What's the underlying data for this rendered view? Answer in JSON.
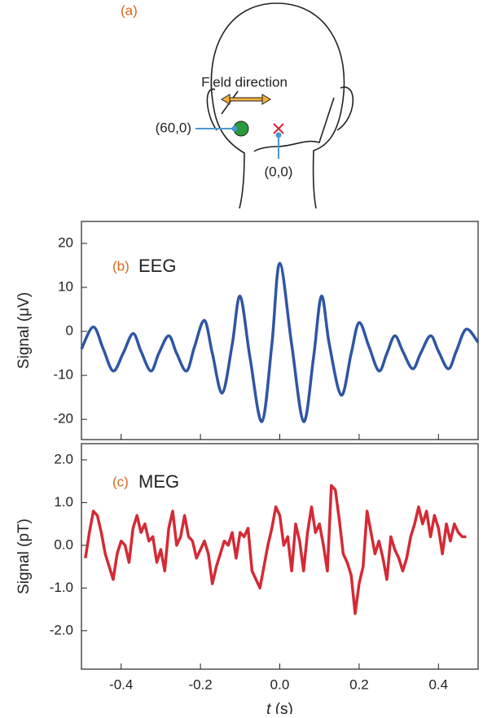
{
  "figure": {
    "panel": "(a)",
    "field_label": "Field direction",
    "point_a": "(60,0)",
    "point_b": "(0,0)"
  },
  "chart_data": [
    {
      "type": "line",
      "panel": "(b)",
      "title": "EEG",
      "ylabel": "Signal (μV)",
      "color": "#2f55a4",
      "xlim": [
        -0.5,
        0.5
      ],
      "ylim": [
        -24.6,
        25
      ],
      "yticks": [
        -20,
        -10,
        0,
        10,
        20
      ],
      "x": [
        -0.5,
        -0.47,
        -0.445,
        -0.42,
        -0.395,
        -0.37,
        -0.35,
        -0.325,
        -0.305,
        -0.28,
        -0.26,
        -0.235,
        -0.215,
        -0.19,
        -0.17,
        -0.145,
        -0.12,
        -0.1,
        -0.075,
        -0.045,
        -0.02,
        0,
        0.03,
        0.06,
        0.085,
        0.105,
        0.125,
        0.155,
        0.18,
        0.2,
        0.225,
        0.25,
        0.27,
        0.29,
        0.31,
        0.335,
        0.355,
        0.38,
        0.4,
        0.425,
        0.445,
        0.47,
        0.5
      ],
      "values": [
        -4,
        1,
        -4,
        -9,
        -5,
        -0.5,
        -4.5,
        -9,
        -5,
        -1,
        -5,
        -9,
        -3.5,
        2.5,
        -5,
        -14,
        -3,
        8,
        -6,
        -20.5,
        -3,
        15.5,
        -3,
        -20.5,
        -6,
        8,
        -3,
        -14.5,
        -5,
        2,
        -3.5,
        -9,
        -5,
        -1,
        -4.5,
        -8.5,
        -5,
        -1,
        -4.5,
        -8.5,
        -4.5,
        0.5,
        -2.5
      ]
    },
    {
      "type": "line",
      "panel": "(c)",
      "title": "MEG",
      "ylabel": "Signal (pT)",
      "color": "#d42a35",
      "xlim": [
        -0.5,
        0.5
      ],
      "ylim": [
        -2.9,
        2.38
      ],
      "yticks": [
        {
          "value": -2,
          "label": "-2.0"
        },
        {
          "value": -1,
          "label": "-1.0"
        },
        {
          "value": 0,
          "label": "0.0"
        },
        {
          "value": 1,
          "label": "1.0"
        },
        {
          "value": 2,
          "label": "2.0"
        }
      ],
      "xticks": [
        -0.4,
        -0.2,
        {
          "value": 0,
          "label": "0.0"
        },
        0.2,
        0.4
      ],
      "xlabel": {
        "symbol": "t",
        "unit": "(s)"
      },
      "x": [
        -0.49,
        -0.48,
        -0.47,
        -0.46,
        -0.45,
        -0.44,
        -0.43,
        -0.42,
        -0.41,
        -0.4,
        -0.39,
        -0.38,
        -0.37,
        -0.36,
        -0.35,
        -0.34,
        -0.33,
        -0.32,
        -0.31,
        -0.3,
        -0.29,
        -0.28,
        -0.27,
        -0.26,
        -0.25,
        -0.24,
        -0.23,
        -0.22,
        -0.21,
        -0.2,
        -0.19,
        -0.18,
        -0.17,
        -0.16,
        -0.15,
        -0.14,
        -0.13,
        -0.12,
        -0.11,
        -0.1,
        -0.09,
        -0.08,
        -0.07,
        -0.06,
        -0.05,
        -0.04,
        -0.03,
        -0.02,
        -0.01,
        0.0,
        0.01,
        0.02,
        0.03,
        0.04,
        0.05,
        0.06,
        0.07,
        0.08,
        0.09,
        0.1,
        0.11,
        0.12,
        0.13,
        0.14,
        0.15,
        0.16,
        0.17,
        0.18,
        0.19,
        0.2,
        0.21,
        0.22,
        0.23,
        0.24,
        0.25,
        0.26,
        0.27,
        0.28,
        0.29,
        0.3,
        0.31,
        0.32,
        0.33,
        0.34,
        0.35,
        0.36,
        0.37,
        0.38,
        0.39,
        0.4,
        0.41,
        0.42,
        0.43,
        0.44,
        0.45,
        0.46,
        0.47
      ],
      "values": [
        -0.3,
        0.3,
        0.8,
        0.7,
        0.3,
        -0.2,
        -0.5,
        -0.8,
        -0.2,
        0.1,
        0.0,
        -0.4,
        0.4,
        0.7,
        0.3,
        0.5,
        0.1,
        0.2,
        -0.4,
        -0.1,
        -0.6,
        0.4,
        0.8,
        0.0,
        0.2,
        0.7,
        0.2,
        0.1,
        -0.3,
        -0.1,
        0.1,
        -0.2,
        -0.9,
        -0.5,
        -0.2,
        0.1,
        0.0,
        0.3,
        -0.3,
        0.3,
        0.2,
        0.4,
        -0.6,
        -0.8,
        -1.0,
        -0.5,
        0.0,
        0.4,
        0.9,
        0.7,
        0.0,
        0.2,
        -0.6,
        0.5,
        0.1,
        -0.6,
        0.3,
        0.9,
        0.3,
        0.5,
        0.0,
        -0.6,
        1.4,
        1.3,
        0.6,
        -0.2,
        -0.4,
        -0.7,
        -1.6,
        -0.9,
        -0.5,
        0.8,
        0.3,
        -0.2,
        0.1,
        -0.3,
        -0.8,
        0.2,
        -0.1,
        -0.3,
        -0.6,
        -0.3,
        0.2,
        0.5,
        0.9,
        0.5,
        0.8,
        0.2,
        0.7,
        0.4,
        -0.2,
        0.5,
        0.1,
        0.5,
        0.3,
        0.2,
        0.2
      ]
    }
  ]
}
